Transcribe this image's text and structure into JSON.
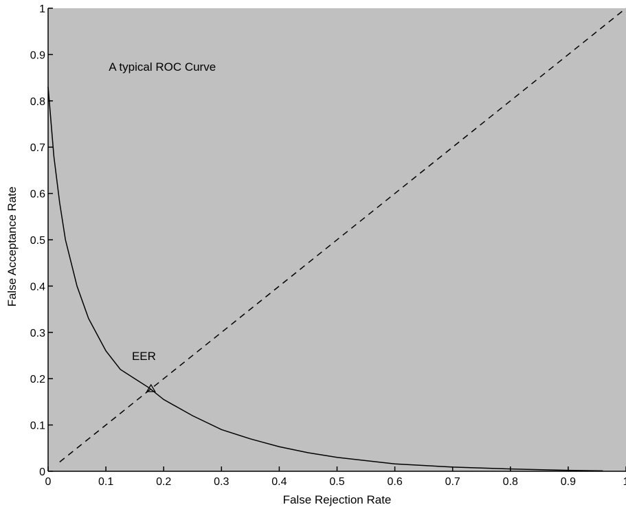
{
  "chart_data": {
    "type": "line",
    "title": "",
    "xlabel": "False Rejection Rate",
    "ylabel": "False Acceptance Rate",
    "xlim": [
      0,
      1
    ],
    "ylim": [
      0,
      1
    ],
    "xticks": [
      "0",
      "0.1",
      "0.2",
      "0.3",
      "0.4",
      "0.5",
      "0.6",
      "0.7",
      "0.8",
      "0.9",
      "1"
    ],
    "yticks": [
      "0",
      "0.1",
      "0.2",
      "0.3",
      "0.4",
      "0.5",
      "0.6",
      "0.7",
      "0.8",
      "0.9",
      "1"
    ],
    "grid": false,
    "background_color": "#c0c0c0",
    "series": [
      {
        "style": "solid",
        "color": "#000000",
        "x": [
          0.0,
          0.01,
          0.02,
          0.03,
          0.05,
          0.07,
          0.1,
          0.125,
          0.15,
          0.175,
          0.2,
          0.25,
          0.3,
          0.35,
          0.4,
          0.45,
          0.5,
          0.6,
          0.7,
          0.8,
          0.9,
          0.96
        ],
        "y": [
          0.83,
          0.68,
          0.58,
          0.5,
          0.4,
          0.33,
          0.26,
          0.22,
          0.2,
          0.18,
          0.155,
          0.12,
          0.09,
          0.07,
          0.053,
          0.04,
          0.03,
          0.016,
          0.009,
          0.005,
          0.002,
          0.001
        ]
      },
      {
        "style": "dashed",
        "color": "#000000",
        "x": [
          0.02,
          1.0
        ],
        "y": [
          0.02,
          1.0
        ]
      }
    ],
    "annotations": [
      {
        "text": "A typical ROC Curve",
        "x": 0.105,
        "y": 0.865
      },
      {
        "text": "EER",
        "x": 0.145,
        "y": 0.24
      }
    ],
    "markers": [
      {
        "label": "EER point",
        "x": 0.178,
        "y": 0.178,
        "shape": "triangle"
      }
    ]
  }
}
